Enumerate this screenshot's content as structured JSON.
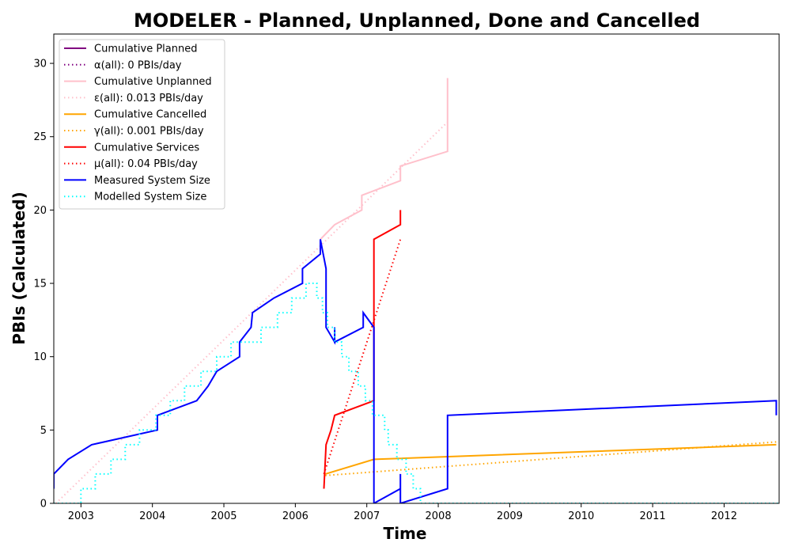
{
  "chart_data": {
    "type": "line",
    "title": "MODELER - Planned, Unplanned, Done  and Cancelled",
    "xlabel": "Time",
    "ylabel": "PBIs (Calculated)",
    "xlim": [
      2002.62,
      2012.77
    ],
    "ylim": [
      0,
      32
    ],
    "x_ticks": [
      2003,
      2004,
      2005,
      2006,
      2007,
      2008,
      2009,
      2010,
      2011,
      2012
    ],
    "y_ticks": [
      0,
      5,
      10,
      15,
      20,
      25,
      30
    ],
    "grid": false,
    "legend_position": "upper-left",
    "series": [
      {
        "name": "Cumulative Planned",
        "style": "solid",
        "color": "#800080",
        "points": []
      },
      {
        "name": "α(all): 0 PBIs/day",
        "style": "dotted",
        "color": "#800080",
        "points": []
      },
      {
        "name": "Cumulative Unplanned",
        "style": "solid",
        "color": "#ffc0cb",
        "points": [
          [
            2006.35,
            18
          ],
          [
            2006.55,
            19
          ],
          [
            2006.93,
            20
          ],
          [
            2006.93,
            21
          ],
          [
            2007.47,
            22
          ],
          [
            2007.47,
            23
          ],
          [
            2008.13,
            24
          ],
          [
            2008.13,
            29
          ]
        ]
      },
      {
        "name": "ε(all): 0.013 PBIs/day",
        "style": "dotted",
        "color": "#ffc0cb",
        "points": [
          [
            2002.65,
            0
          ],
          [
            2008.13,
            26
          ]
        ]
      },
      {
        "name": "Cumulative Cancelled",
        "style": "solid",
        "color": "#ffa500",
        "points": [
          [
            2006.42,
            2
          ],
          [
            2007.1,
            3
          ],
          [
            2012.73,
            4
          ]
        ]
      },
      {
        "name": "γ(all): 0.001 PBIs/day",
        "style": "dotted",
        "color": "#ffa500",
        "points": [
          [
            2006.42,
            1.9
          ],
          [
            2012.75,
            4.2
          ]
        ]
      },
      {
        "name": "Cumulative Services",
        "style": "solid",
        "color": "#ff0000",
        "points": [
          [
            2006.4,
            1
          ],
          [
            2006.43,
            4
          ],
          [
            2006.5,
            5
          ],
          [
            2006.55,
            6
          ],
          [
            2007.1,
            7
          ],
          [
            2007.1,
            18
          ],
          [
            2007.47,
            19
          ],
          [
            2007.47,
            20
          ]
        ]
      },
      {
        "name": "μ(all): 0.04 PBIs/day",
        "style": "dotted",
        "color": "#ff0000",
        "points": [
          [
            2006.4,
            2
          ],
          [
            2007.47,
            18
          ]
        ]
      },
      {
        "name": "Measured System Size",
        "style": "solid",
        "color": "#0000ff",
        "points": [
          [
            2002.62,
            1
          ],
          [
            2002.62,
            2
          ],
          [
            2002.82,
            3
          ],
          [
            2003.15,
            4
          ],
          [
            2004.07,
            5
          ],
          [
            2004.07,
            6
          ],
          [
            2004.62,
            7
          ],
          [
            2004.78,
            8
          ],
          [
            2004.9,
            9
          ],
          [
            2005.22,
            10
          ],
          [
            2005.22,
            11
          ],
          [
            2005.38,
            12
          ],
          [
            2005.4,
            13
          ],
          [
            2005.7,
            14
          ],
          [
            2006.1,
            15
          ],
          [
            2006.1,
            16
          ],
          [
            2006.35,
            17
          ],
          [
            2006.35,
            18
          ],
          [
            2006.43,
            16
          ],
          [
            2006.43,
            12
          ],
          [
            2006.55,
            11
          ],
          [
            2006.55,
            12
          ],
          [
            2006.55,
            11
          ],
          [
            2006.95,
            12
          ],
          [
            2006.95,
            13
          ],
          [
            2007.1,
            12
          ],
          [
            2007.1,
            0
          ],
          [
            2007.47,
            1
          ],
          [
            2007.47,
            2
          ],
          [
            2007.47,
            0
          ],
          [
            2008.13,
            1
          ],
          [
            2008.13,
            6
          ],
          [
            2012.73,
            7
          ],
          [
            2012.73,
            6
          ]
        ]
      },
      {
        "name": "Modelled System Size",
        "style": "dotted",
        "color": "#00ffff",
        "points": [
          [
            2002.62,
            0
          ],
          [
            2003.0,
            0
          ],
          [
            2003.0,
            1
          ],
          [
            2003.2,
            1
          ],
          [
            2003.2,
            2
          ],
          [
            2003.42,
            2
          ],
          [
            2003.42,
            3
          ],
          [
            2003.62,
            3
          ],
          [
            2003.62,
            4
          ],
          [
            2003.82,
            4
          ],
          [
            2003.82,
            5
          ],
          [
            2004.05,
            5
          ],
          [
            2004.05,
            6
          ],
          [
            2004.25,
            6
          ],
          [
            2004.25,
            7
          ],
          [
            2004.45,
            7
          ],
          [
            2004.45,
            8
          ],
          [
            2004.68,
            8
          ],
          [
            2004.68,
            9
          ],
          [
            2004.9,
            9
          ],
          [
            2004.9,
            10
          ],
          [
            2005.1,
            10
          ],
          [
            2005.1,
            11
          ],
          [
            2005.3,
            11
          ],
          [
            2005.3,
            11
          ],
          [
            2005.52,
            11
          ],
          [
            2005.52,
            12
          ],
          [
            2005.75,
            12
          ],
          [
            2005.75,
            13
          ],
          [
            2005.95,
            13
          ],
          [
            2005.95,
            14
          ],
          [
            2006.15,
            14
          ],
          [
            2006.15,
            15
          ],
          [
            2006.3,
            15
          ],
          [
            2006.3,
            14
          ],
          [
            2006.38,
            14
          ],
          [
            2006.38,
            13
          ],
          [
            2006.45,
            13
          ],
          [
            2006.45,
            12
          ],
          [
            2006.55,
            12
          ],
          [
            2006.55,
            11
          ],
          [
            2006.65,
            11
          ],
          [
            2006.65,
            10
          ],
          [
            2006.75,
            10
          ],
          [
            2006.75,
            9
          ],
          [
            2006.88,
            9
          ],
          [
            2006.88,
            8
          ],
          [
            2006.98,
            8
          ],
          [
            2006.98,
            7
          ],
          [
            2007.08,
            7
          ],
          [
            2007.08,
            6
          ],
          [
            2007.25,
            6
          ],
          [
            2007.25,
            5
          ],
          [
            2007.3,
            5
          ],
          [
            2007.3,
            4
          ],
          [
            2007.42,
            4
          ],
          [
            2007.42,
            3
          ],
          [
            2007.55,
            3
          ],
          [
            2007.55,
            2
          ],
          [
            2007.65,
            2
          ],
          [
            2007.65,
            1
          ],
          [
            2007.75,
            1
          ],
          [
            2007.75,
            0
          ],
          [
            2012.77,
            0
          ]
        ]
      }
    ]
  }
}
